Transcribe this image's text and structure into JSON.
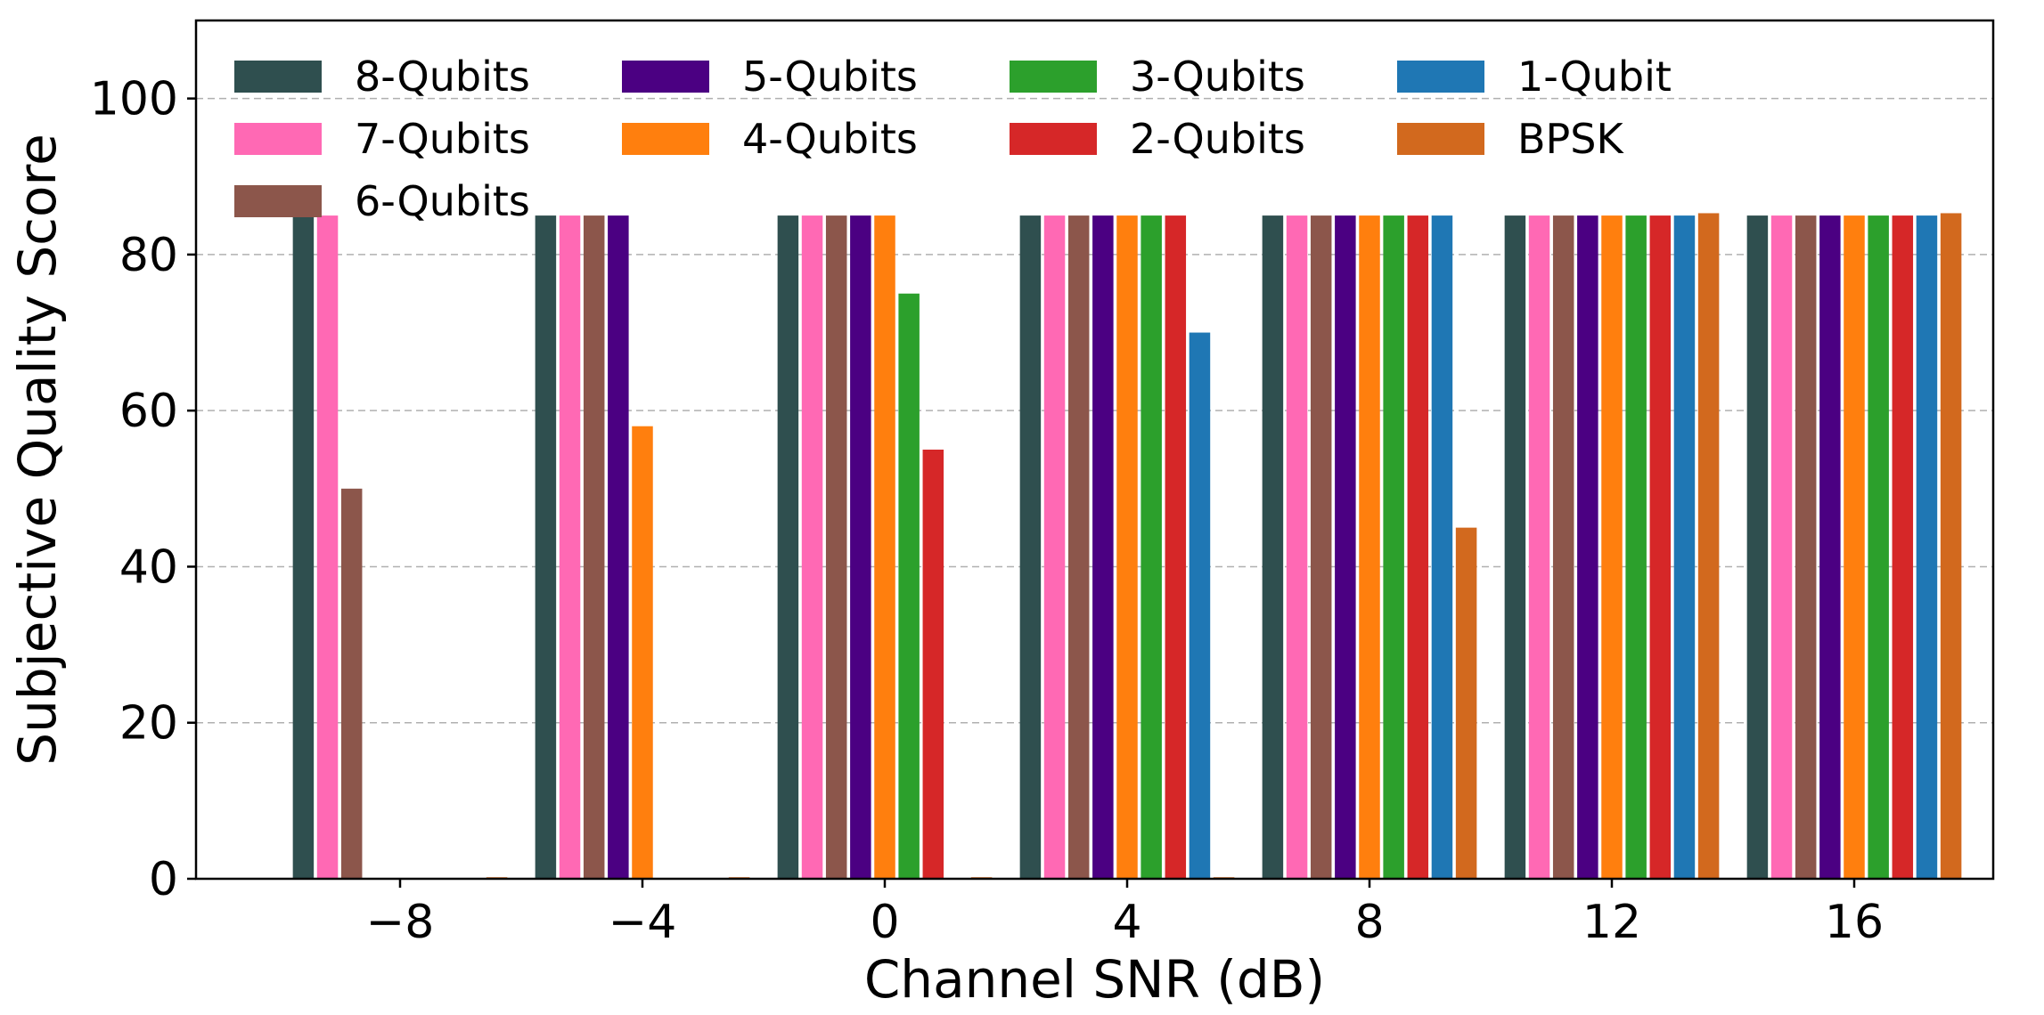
{
  "chart_data": {
    "type": "bar",
    "xlabel": "Channel SNR (dB)",
    "ylabel": "Subjective Quality Score",
    "ylim": [
      0,
      110
    ],
    "yticks": [
      0,
      20,
      40,
      60,
      80,
      100
    ],
    "grid": "horizontal dashed",
    "legend_position": "top-left",
    "categories": [
      "−8",
      "−4",
      "0",
      "4",
      "8",
      "12",
      "16"
    ],
    "series": [
      {
        "name": "8-Qubits",
        "color": "#2f4f4f",
        "values": [
          85,
          85,
          85,
          85,
          85,
          85,
          85
        ]
      },
      {
        "name": "7-Qubits",
        "color": "#ff69b4",
        "values": [
          85,
          85,
          85,
          85,
          85,
          85,
          85
        ]
      },
      {
        "name": "6-Qubits",
        "color": "#8c564b",
        "values": [
          50,
          85,
          85,
          85,
          85,
          85,
          85
        ]
      },
      {
        "name": "5-Qubits",
        "color": "#4b0082",
        "values": [
          0,
          85,
          85,
          85,
          85,
          85,
          85
        ]
      },
      {
        "name": "4-Qubits",
        "color": "#ff7f0e",
        "values": [
          0,
          58,
          85,
          85,
          85,
          85,
          85
        ]
      },
      {
        "name": "3-Qubits",
        "color": "#2ca02c",
        "values": [
          0,
          0,
          75,
          85,
          85,
          85,
          85
        ]
      },
      {
        "name": "2-Qubits",
        "color": "#d62728",
        "values": [
          0,
          0,
          55,
          85,
          85,
          85,
          85
        ]
      },
      {
        "name": "1-Qubit",
        "color": "#1f77b4",
        "values": [
          0,
          0,
          0,
          70,
          85,
          85,
          85
        ]
      },
      {
        "name": "BPSK",
        "color": "#d2691e",
        "values": [
          0.2,
          0.2,
          0.2,
          0.2,
          45,
          85.3,
          85.3
        ]
      }
    ]
  }
}
